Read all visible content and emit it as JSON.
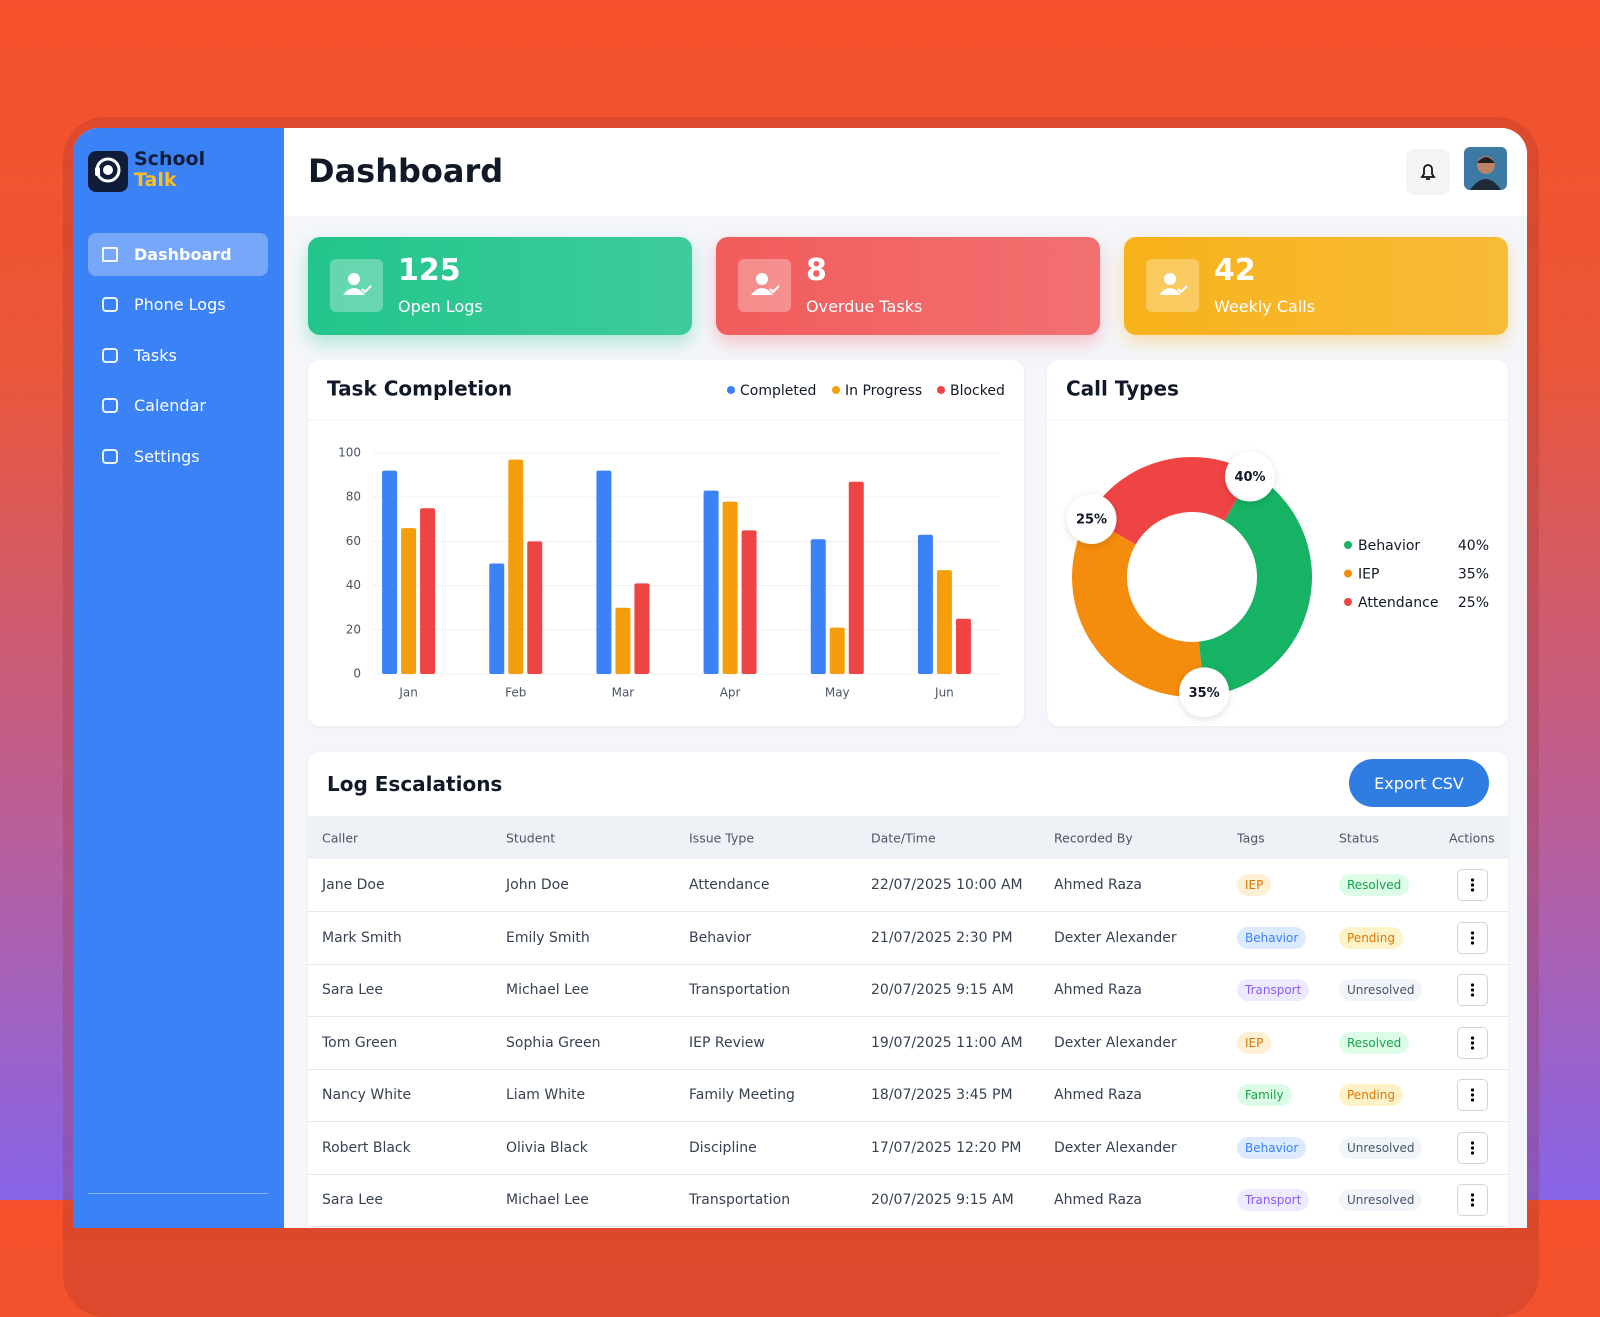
{
  "brand": {
    "line1": "School",
    "line2": "Talk"
  },
  "nav": [
    "Dashboard",
    "Phone Logs",
    "Tasks",
    "Calendar",
    "Settings"
  ],
  "header": {
    "title": "Dashboard"
  },
  "stats": [
    {
      "value": 125,
      "label": "Open Logs",
      "color": "#22c58b"
    },
    {
      "value": 8,
      "label": "Overdue Tasks",
      "color": "#f25c5c"
    },
    {
      "value": 42,
      "label": "Weekly Calls",
      "color": "#f8b21a"
    }
  ],
  "chart_data": [
    {
      "type": "bar",
      "title": "Task Completion",
      "categories": [
        "Jan",
        "Feb",
        "Mar",
        "Apr",
        "May",
        "Jun"
      ],
      "series": [
        {
          "name": "Completed",
          "color": "#3b82f6",
          "values": [
            92,
            50,
            92,
            83,
            61,
            63
          ]
        },
        {
          "name": "In Progress",
          "color": "#f59e0b",
          "values": [
            66,
            97,
            30,
            78,
            21,
            47
          ]
        },
        {
          "name": "Blocked",
          "color": "#ef4444",
          "values": [
            75,
            60,
            41,
            65,
            87,
            25
          ]
        }
      ],
      "ylim": [
        0,
        100
      ],
      "yticks": [
        0,
        20,
        40,
        60,
        80,
        100
      ],
      "grid": true
    },
    {
      "type": "pie",
      "title": "Call Types",
      "categories": [
        "Behavior",
        "IEP",
        "Attendance"
      ],
      "values": [
        40,
        35,
        25
      ],
      "value_labels": [
        "40%",
        "35%",
        "25%"
      ],
      "colors": [
        "#16b364",
        "#f48c0e",
        "#ef4444"
      ]
    }
  ],
  "table": {
    "title": "Log Escalations",
    "button": "Export CSV",
    "columns": [
      "Caller",
      "Student",
      "Issue Type",
      "Date/Time",
      "Recorded By",
      "Tags",
      "Status",
      "Actions"
    ],
    "rows": [
      [
        "Jane Doe",
        "John Doe",
        "Attendance",
        "22/07/2025 10:00 AM",
        "Ahmed Raza",
        "IEP",
        "Resolved"
      ],
      [
        "Mark Smith",
        "Emily Smith",
        "Behavior",
        "21/07/2025 2:30 PM",
        "Dexter Alexander",
        "Behavior",
        "Pending"
      ],
      [
        "Sara Lee",
        "Michael Lee",
        "Transportation",
        "20/07/2025 9:15 AM",
        "Ahmed Raza",
        "Transport",
        "Unresolved"
      ],
      [
        "Tom Green",
        "Sophia Green",
        "IEP Review",
        "19/07/2025 11:00 AM",
        "Dexter Alexander",
        "IEP",
        "Resolved"
      ],
      [
        "Nancy White",
        "Liam White",
        "Family Meeting",
        "18/07/2025 3:45 PM",
        "Ahmed Raza",
        "Family",
        "Pending"
      ],
      [
        "Robert Black",
        "Olivia Black",
        "Discipline",
        "17/07/2025 12:20 PM",
        "Dexter Alexander",
        "Behavior",
        "Unresolved"
      ],
      [
        "Sara Lee",
        "Michael Lee",
        "Transportation",
        "20/07/2025 9:15 AM",
        "Ahmed Raza",
        "Transport",
        "Unresolved"
      ]
    ]
  }
}
